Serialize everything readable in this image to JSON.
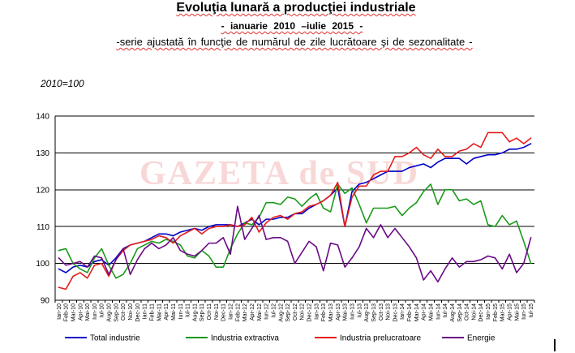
{
  "watermark": "GAZETA de SUD",
  "chart_data": {
    "type": "line",
    "title": "Evoluţia lunară a producţiei industriale",
    "subtitle": "- ianuarie 2010 –iulie 2015 -",
    "subtitle2": "-serie ajustată în funcţie de numărul de zile lucrătoare şi de sezonalitate -",
    "ylabel": "2010=100",
    "ylim": [
      90,
      140
    ],
    "yticks": [
      90,
      100,
      110,
      120,
      130,
      140
    ],
    "grid": true,
    "legend_position": "bottom",
    "categories": [
      "Ian-10",
      "Feb-10",
      "Mar-10",
      "Apr-10",
      "Mai-10",
      "Iun-10",
      "Iul-10",
      "Aug-10",
      "Sep-10",
      "Oct-10",
      "Noi-10",
      "Dec-10",
      "Ian-11",
      "Feb-11",
      "Mar-11",
      "Apr-11",
      "Mai-11",
      "Iun-11",
      "Iul-11",
      "Aug-11",
      "Sep-11",
      "Oct-11",
      "Noi-11",
      "Dec-11",
      "Ian-12",
      "Feb-12",
      "Mar-12",
      "Apr-12",
      "Mai-12",
      "Iun-12",
      "Iul-12",
      "Aug-12",
      "Sep-12",
      "Oct-12",
      "Noi-12",
      "Dec-12",
      "Ian-13",
      "Feb-13",
      "Mar-13",
      "Apr-13",
      "Mai-13",
      "Iun-13",
      "Iul-13",
      "Aug-13",
      "Sep-13",
      "Oct-13",
      "Noi-13",
      "Dec-13",
      "Ian-14",
      "Feb-14",
      "Mar-14",
      "Apr-14",
      "Mai-14",
      "Iun-14",
      "Iul-14",
      "Aug-14",
      "Sep-14",
      "Oct-14",
      "Noi-14",
      "Dec-14",
      "Ian-15",
      "Feb-15",
      "Mar-15",
      "Apr-15",
      "Mai-15",
      "Iun-15",
      "Iul-15"
    ],
    "series": [
      {
        "name": "Total industrie",
        "color": "#0000c8",
        "values": [
          98.5,
          97.5,
          99,
          99.5,
          99,
          100.5,
          101,
          99.5,
          101.5,
          104,
          105,
          105.5,
          106,
          107,
          108,
          108,
          107.5,
          108.5,
          109,
          109.5,
          109,
          110,
          110.5,
          110.5,
          110.5,
          110,
          111,
          112,
          110.5,
          112,
          112,
          112.5,
          112.5,
          113.5,
          113.5,
          115,
          116,
          117,
          118.5,
          120.5,
          110,
          119.5,
          121.5,
          122,
          123,
          124,
          125,
          125,
          125,
          126,
          126.5,
          127,
          126,
          127.5,
          128.5,
          128.5,
          128.5,
          127,
          128.5,
          129,
          129.5,
          129.5,
          130,
          131,
          131,
          131.5,
          132.5
        ]
      },
      {
        "name": "Industria extractiva",
        "color": "#1a9a1a",
        "values": [
          103.5,
          104,
          100,
          98.5,
          97.5,
          101.5,
          104,
          99.5,
          96,
          97,
          100,
          104,
          105,
          106,
          105.5,
          106.5,
          106,
          105,
          102,
          101.5,
          103.5,
          102,
          99,
          99,
          104,
          108,
          111,
          110.5,
          112.5,
          116.5,
          116.5,
          116,
          118,
          117.5,
          115.5,
          117.5,
          119,
          115,
          114,
          121.5,
          119,
          120.5,
          116,
          111,
          115,
          115,
          115,
          115.5,
          113,
          115,
          116.5,
          119.5,
          121.5,
          116,
          120,
          120,
          117,
          117.5,
          116,
          117,
          110.5,
          110,
          113,
          110.5,
          111.5,
          106,
          100
        ]
      },
      {
        "name": "Industria prelucratoare",
        "color": "#e41b1b",
        "values": [
          93.5,
          93,
          96.5,
          97.5,
          96,
          99.5,
          100,
          96.5,
          101,
          103.5,
          105,
          105.5,
          106,
          106.5,
          107.5,
          107,
          105.5,
          107.5,
          108.5,
          109.5,
          108,
          109.5,
          110,
          110,
          110.5,
          110,
          110.5,
          112.5,
          108.5,
          111,
          112.5,
          113,
          112,
          113.5,
          114,
          115.5,
          116,
          117,
          118.5,
          122,
          110,
          118,
          121,
          121,
          124,
          125,
          125,
          129,
          129,
          130,
          131.5,
          129.5,
          128.5,
          131,
          129,
          129,
          130.5,
          131,
          132.5,
          131.5,
          135.5,
          135.5,
          135.5,
          133,
          134,
          132.5,
          134
        ]
      },
      {
        "name": "Energie",
        "color": "#6a0a86",
        "values": [
          101.5,
          99.5,
          100,
          100.5,
          99,
          102,
          101.5,
          97,
          101,
          104,
          97,
          101,
          104,
          105.5,
          104,
          105,
          107,
          103.5,
          102.5,
          102,
          103.5,
          105.5,
          105.5,
          107,
          102.5,
          115.5,
          106.5,
          109.5,
          113,
          106.5,
          107,
          107,
          106,
          100,
          103,
          106,
          104.5,
          98,
          105.5,
          105,
          99,
          101.5,
          104.5,
          109.5,
          107,
          110.5,
          107,
          109.5,
          107,
          104.5,
          101.5,
          95.5,
          98,
          95,
          98.5,
          101.5,
          99,
          100.5,
          100.5,
          101,
          102,
          101.5,
          98.5,
          102.5,
          97.5,
          100,
          107
        ]
      }
    ]
  }
}
